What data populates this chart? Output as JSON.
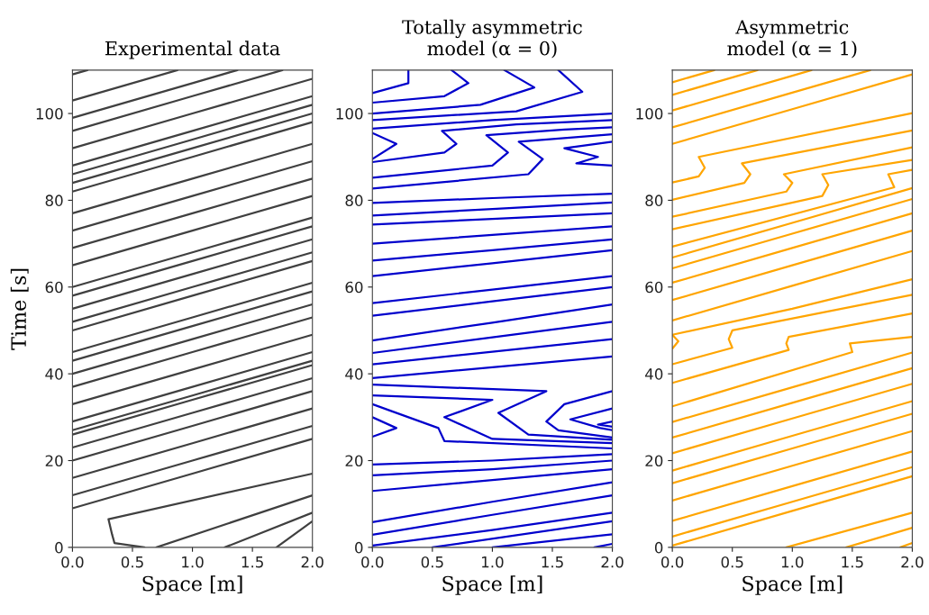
{
  "chart_data": [
    {
      "type": "line",
      "title": "Experimental data",
      "xlabel": "Space [m]",
      "ylabel": "Time [s]",
      "xlim": [
        0,
        2
      ],
      "ylim": [
        0,
        110
      ],
      "xticks": [
        {
          "value": 0,
          "label": "0.0"
        },
        {
          "value": 0.5,
          "label": "0.5"
        },
        {
          "value": 1,
          "label": "1.0"
        },
        {
          "value": 1.5,
          "label": "1.5"
        },
        {
          "value": 2,
          "label": "2.0"
        }
      ],
      "yticks": [
        0,
        20,
        40,
        60,
        80,
        100
      ],
      "grid": false,
      "series": [
        {
          "color": "#404040",
          "x": [
            0,
            0.125
          ],
          "values": [
            109,
            110
          ]
        },
        {
          "color": "#404040",
          "x": [
            0,
            0.875
          ],
          "values": [
            103,
            110
          ]
        },
        {
          "color": "#404040",
          "x": [
            0,
            1,
            1.375
          ],
          "values": [
            99,
            107,
            110
          ]
        },
        {
          "color": "#404040",
          "x": [
            0,
            1,
            1.75
          ],
          "values": [
            96,
            104,
            110
          ]
        },
        {
          "color": "#404040",
          "x": [
            0,
            1,
            2
          ],
          "values": [
            92,
            100,
            108
          ]
        },
        {
          "color": "#404040",
          "x": [
            0,
            1,
            2
          ],
          "values": [
            88,
            96,
            104
          ]
        },
        {
          "color": "#404040",
          "x": [
            0,
            1,
            2
          ],
          "values": [
            86,
            94,
            102
          ]
        },
        {
          "color": "#404040",
          "x": [
            0,
            1,
            2
          ],
          "values": [
            84,
            92,
            100
          ]
        },
        {
          "color": "#404040",
          "x": [
            0,
            1,
            2
          ],
          "values": [
            82,
            90,
            98
          ]
        },
        {
          "color": "#404040",
          "x": [
            0,
            1,
            2
          ],
          "values": [
            77,
            85,
            93
          ]
        },
        {
          "color": "#404040",
          "x": [
            0,
            1,
            2
          ],
          "values": [
            73,
            81,
            89
          ]
        },
        {
          "color": "#404040",
          "x": [
            0,
            1,
            2
          ],
          "values": [
            69,
            77,
            85
          ]
        },
        {
          "color": "#404040",
          "x": [
            0,
            1,
            2
          ],
          "values": [
            65,
            73,
            81
          ]
        },
        {
          "color": "#404040",
          "x": [
            0,
            1,
            2
          ],
          "values": [
            60,
            68,
            76
          ]
        },
        {
          "color": "#404040",
          "x": [
            0,
            1,
            2
          ],
          "values": [
            58,
            66,
            74
          ]
        },
        {
          "color": "#404040",
          "x": [
            0,
            1,
            2
          ],
          "values": [
            55,
            63,
            71
          ]
        },
        {
          "color": "#404040",
          "x": [
            0,
            1,
            2
          ],
          "values": [
            52,
            60,
            68
          ]
        },
        {
          "color": "#404040",
          "x": [
            0,
            1,
            2
          ],
          "values": [
            50,
            58,
            66
          ]
        },
        {
          "color": "#404040",
          "x": [
            0,
            1,
            2
          ],
          "values": [
            45,
            53,
            61
          ]
        },
        {
          "color": "#404040",
          "x": [
            0,
            1,
            2
          ],
          "values": [
            43,
            51,
            59
          ]
        },
        {
          "color": "#404040",
          "x": [
            0,
            1,
            2
          ],
          "values": [
            40,
            48,
            56
          ]
        },
        {
          "color": "#404040",
          "x": [
            0,
            1,
            2
          ],
          "values": [
            37,
            45,
            53
          ]
        },
        {
          "color": "#404040",
          "x": [
            0,
            1,
            2
          ],
          "values": [
            33,
            41,
            49
          ]
        },
        {
          "color": "#404040",
          "x": [
            0,
            1,
            2
          ],
          "values": [
            29,
            37,
            45
          ]
        },
        {
          "color": "#404040",
          "x": [
            0,
            1,
            2
          ],
          "values": [
            27,
            35,
            43
          ]
        },
        {
          "color": "#404040",
          "x": [
            0,
            1,
            2
          ],
          "values": [
            26,
            34,
            42
          ]
        },
        {
          "color": "#404040",
          "x": [
            0,
            1,
            2
          ],
          "values": [
            23,
            31,
            39
          ]
        },
        {
          "color": "#404040",
          "x": [
            0,
            1,
            2
          ],
          "values": [
            20,
            28,
            36
          ]
        },
        {
          "color": "#404040",
          "x": [
            0,
            1,
            2
          ],
          "values": [
            16,
            24,
            32
          ]
        },
        {
          "color": "#404040",
          "x": [
            0,
            1,
            2
          ],
          "values": [
            12,
            20,
            28
          ]
        },
        {
          "color": "#404040",
          "x": [
            0,
            1,
            2
          ],
          "values": [
            9,
            17,
            25
          ]
        },
        {
          "color": "#404040",
          "x": [
            0.6,
            0.35,
            0.33,
            0.3,
            2
          ],
          "values": [
            0,
            1,
            3,
            6.5,
            17
          ]
        },
        {
          "color": "#404040",
          "x": [
            0.7,
            2
          ],
          "values": [
            0,
            12
          ]
        },
        {
          "color": "#404040",
          "x": [
            1.27,
            2
          ],
          "values": [
            0,
            8
          ]
        },
        {
          "color": "#404040",
          "x": [
            1.7,
            2
          ],
          "values": [
            0,
            6
          ]
        }
      ]
    },
    {
      "type": "line",
      "title": "Totally asymmetric\nmodel (α = 0)",
      "xlabel": "Space [m]",
      "xlim": [
        0,
        2
      ],
      "ylim": [
        0,
        110
      ],
      "xticks": [
        {
          "value": 0,
          "label": "0.0"
        },
        {
          "value": 0.5,
          "label": "0.5"
        },
        {
          "value": 1,
          "label": "1.0"
        },
        {
          "value": 1.5,
          "label": "1.5"
        },
        {
          "value": 2,
          "label": "2.0"
        }
      ],
      "yticks": [
        0,
        20,
        40,
        60,
        80,
        100
      ],
      "grid": false,
      "tick_labels": "xy",
      "series": [
        {
          "color": "#0000cc",
          "x": [
            0,
            0.3,
            0.3
          ],
          "values": [
            104.7,
            107,
            110
          ]
        },
        {
          "color": "#0000cc",
          "x": [
            0,
            0.6,
            0.8,
            0.66
          ],
          "values": [
            102.5,
            104,
            107,
            110
          ]
        },
        {
          "color": "#0000cc",
          "x": [
            0,
            0.9,
            1.35,
            1.1
          ],
          "values": [
            100,
            102,
            106,
            110
          ]
        },
        {
          "color": "#0000cc",
          "x": [
            0,
            1.2,
            1.75,
            1.55
          ],
          "values": [
            98.5,
            100.5,
            105,
            110
          ]
        },
        {
          "color": "#0000cc",
          "x": [
            0,
            1,
            2
          ],
          "values": [
            96.5,
            98.5,
            100
          ]
        },
        {
          "color": "#0000cc",
          "x": [
            0,
            0.2,
            0
          ],
          "values": [
            95.5,
            93,
            89.5
          ]
        },
        {
          "color": "#0000cc",
          "x": [
            0,
            0.6,
            0.7,
            0.58,
            1.2,
            2
          ],
          "values": [
            88.8,
            91,
            93,
            96,
            97.5,
            98.5
          ]
        },
        {
          "color": "#0000cc",
          "x": [
            0,
            1,
            1.13,
            0.95,
            1.6,
            2
          ],
          "values": [
            85.2,
            88,
            91,
            95,
            96.3,
            96.8
          ]
        },
        {
          "color": "#0000cc",
          "x": [
            0,
            1.3,
            1.42,
            1.22,
            2
          ],
          "values": [
            82.7,
            86,
            89.5,
            93.5,
            95.2
          ]
        },
        {
          "color": "#0000cc",
          "x": [
            2,
            1.6,
            1.88,
            1.7,
            2
          ],
          "values": [
            93.5,
            92,
            90,
            88.5,
            88
          ]
        },
        {
          "color": "#0000cc",
          "x": [
            0,
            1,
            2
          ],
          "values": [
            79.4,
            80.5,
            81.5
          ]
        },
        {
          "color": "#0000cc",
          "x": [
            0,
            1,
            2
          ],
          "values": [
            76.5,
            78,
            79.5
          ]
        },
        {
          "color": "#0000cc",
          "x": [
            0,
            1,
            2
          ],
          "values": [
            74.4,
            75.7,
            77
          ]
        },
        {
          "color": "#0000cc",
          "x": [
            0,
            1,
            2
          ],
          "values": [
            70,
            72,
            74
          ]
        },
        {
          "color": "#0000cc",
          "x": [
            0,
            1,
            2
          ],
          "values": [
            66.1,
            68.5,
            71
          ]
        },
        {
          "color": "#0000cc",
          "x": [
            0,
            1,
            2
          ],
          "values": [
            62.5,
            65.5,
            68.5
          ]
        },
        {
          "color": "#0000cc",
          "x": [
            0,
            1,
            2
          ],
          "values": [
            56.3,
            59.4,
            62.5
          ]
        },
        {
          "color": "#0000cc",
          "x": [
            0,
            1,
            2
          ],
          "values": [
            53.4,
            56.7,
            60
          ]
        },
        {
          "color": "#0000cc",
          "x": [
            0,
            1,
            2
          ],
          "values": [
            47.7,
            51.8,
            56
          ]
        },
        {
          "color": "#0000cc",
          "x": [
            0,
            1,
            2
          ],
          "values": [
            44.8,
            48.4,
            52
          ]
        },
        {
          "color": "#0000cc",
          "x": [
            0,
            1,
            2
          ],
          "values": [
            42.2,
            45.1,
            48
          ]
        },
        {
          "color": "#0000cc",
          "x": [
            0,
            1,
            2
          ],
          "values": [
            39,
            41.5,
            44
          ]
        },
        {
          "color": "#0000cc",
          "x": [
            0,
            0.2,
            0
          ],
          "values": [
            30,
            27.5,
            25.5
          ]
        },
        {
          "color": "#0000cc",
          "x": [
            0,
            0.15,
            0.55,
            0.6,
            2
          ],
          "values": [
            33,
            31.5,
            27.5,
            24.5,
            22.8
          ]
        },
        {
          "color": "#0000cc",
          "x": [
            0,
            1,
            0.6,
            1,
            2
          ],
          "values": [
            35,
            34,
            30,
            25,
            24
          ]
        },
        {
          "color": "#0000cc",
          "x": [
            0,
            1.45,
            1.05,
            1.3,
            2
          ],
          "values": [
            37.5,
            36,
            31,
            26,
            24.8
          ]
        },
        {
          "color": "#0000cc",
          "x": [
            2,
            1.6,
            1.45,
            1.55,
            2
          ],
          "values": [
            36,
            33,
            29,
            27,
            25.3
          ]
        },
        {
          "color": "#0000cc",
          "x": [
            2,
            1.65,
            1.9,
            2
          ],
          "values": [
            32,
            29.5,
            27.5,
            27
          ]
        },
        {
          "color": "#0000cc",
          "x": [
            2,
            1.88,
            2
          ],
          "values": [
            29,
            28.3,
            27.8
          ]
        },
        {
          "color": "#0000cc",
          "x": [
            0,
            1,
            2
          ],
          "values": [
            19.1,
            20,
            21.5
          ]
        },
        {
          "color": "#0000cc",
          "x": [
            0,
            1,
            2
          ],
          "values": [
            16.6,
            18,
            20
          ]
        },
        {
          "color": "#0000cc",
          "x": [
            0,
            1,
            2
          ],
          "values": [
            13,
            15.5,
            18
          ]
        },
        {
          "color": "#0000cc",
          "x": [
            0,
            1,
            2
          ],
          "values": [
            5.8,
            10.5,
            15
          ]
        },
        {
          "color": "#0000cc",
          "x": [
            0,
            1,
            2
          ],
          "values": [
            2.9,
            7.5,
            12
          ]
        },
        {
          "color": "#0000cc",
          "x": [
            0,
            1,
            2
          ],
          "values": [
            0.4,
            4,
            8
          ]
        },
        {
          "color": "#0000cc",
          "x": [
            0.5,
            2
          ],
          "values": [
            0,
            6
          ]
        },
        {
          "color": "#0000cc",
          "x": [
            1,
            2
          ],
          "values": [
            0,
            3
          ]
        },
        {
          "color": "#0000cc",
          "x": [
            1.85,
            2
          ],
          "values": [
            0,
            0.8
          ]
        }
      ]
    },
    {
      "type": "line",
      "title": "Asymmetric\nmodel (α = 1)",
      "xlabel": "Space [m]",
      "xlim": [
        0,
        2
      ],
      "ylim": [
        0,
        110
      ],
      "xticks": [
        {
          "value": 0,
          "label": "0.0"
        },
        {
          "value": 0.5,
          "label": "0.5"
        },
        {
          "value": 1,
          "label": "1.0"
        },
        {
          "value": 1.5,
          "label": "1.5"
        },
        {
          "value": 2,
          "label": "2.0"
        }
      ],
      "yticks": [
        0,
        20,
        40,
        60,
        80,
        100
      ],
      "grid": false,
      "series": [
        {
          "color": "#ffa500",
          "x": [
            0,
            0.35
          ],
          "values": [
            107.2,
            110
          ]
        },
        {
          "color": "#ffa500",
          "x": [
            0,
            0.71
          ],
          "values": [
            104.3,
            110
          ]
        },
        {
          "color": "#ffa500",
          "x": [
            0,
            1,
            1.16
          ],
          "values": [
            100.7,
            108.7,
            110
          ]
        },
        {
          "color": "#ffa500",
          "x": [
            0,
            1,
            1.65
          ],
          "values": [
            96.8,
            104.8,
            110
          ]
        },
        {
          "color": "#ffa500",
          "x": [
            0,
            1,
            2
          ],
          "values": [
            93,
            101,
            109
          ]
        },
        {
          "color": "#ffa500",
          "x": [
            0,
            0.22,
            0.27,
            0.22,
            2
          ],
          "values": [
            84.1,
            85.5,
            87.5,
            90,
            100.1
          ]
        },
        {
          "color": "#ffa500",
          "x": [
            0,
            0.6,
            0.65,
            0.58,
            2
          ],
          "values": [
            80.1,
            84,
            86,
            88.5,
            96.1
          ]
        },
        {
          "color": "#ffa500",
          "x": [
            0,
            0.95,
            1,
            0.93,
            2
          ],
          "values": [
            76.2,
            82,
            84,
            86,
            92.2
          ]
        },
        {
          "color": "#ffa500",
          "x": [
            0,
            1.25,
            1.3,
            1.25,
            2
          ],
          "values": [
            73.3,
            81,
            83.5,
            86,
            89.3
          ]
        },
        {
          "color": "#ffa500",
          "x": [
            0,
            1.85,
            1.8,
            2
          ],
          "values": [
            69.3,
            83,
            86,
            87
          ]
        },
        {
          "color": "#ffa500",
          "x": [
            0,
            1,
            2
          ],
          "values": [
            66.8,
            74.8,
            82.8
          ]
        },
        {
          "color": "#ffa500",
          "x": [
            0,
            1,
            2
          ],
          "values": [
            64.3,
            72.3,
            80.3
          ]
        },
        {
          "color": "#ffa500",
          "x": [
            0,
            1,
            2
          ],
          "values": [
            61,
            69,
            77
          ]
        },
        {
          "color": "#ffa500",
          "x": [
            0,
            1,
            2
          ],
          "values": [
            57,
            65,
            73
          ]
        },
        {
          "color": "#ffa500",
          "x": [
            0,
            1,
            2
          ],
          "values": [
            52.3,
            60.3,
            68.3
          ]
        },
        {
          "color": "#ffa500",
          "x": [
            0,
            0.05,
            0,
            1,
            2
          ],
          "values": [
            45.8,
            47.5,
            49,
            55,
            61.8
          ]
        },
        {
          "color": "#ffa500",
          "x": [
            0,
            0.5,
            0.47,
            0.5,
            2
          ],
          "values": [
            42.2,
            46,
            48,
            50,
            58.2
          ]
        },
        {
          "color": "#ffa500",
          "x": [
            0,
            0.97,
            0.95,
            0.97,
            2
          ],
          "values": [
            37.9,
            45.5,
            47,
            48.5,
            53.9
          ]
        },
        {
          "color": "#ffa500",
          "x": [
            0,
            1.5,
            1.48,
            2
          ],
          "values": [
            32.5,
            45,
            47,
            48.5
          ]
        },
        {
          "color": "#ffa500",
          "x": [
            0,
            1,
            2
          ],
          "values": [
            28.9,
            36.9,
            44.9
          ]
        },
        {
          "color": "#ffa500",
          "x": [
            0,
            1,
            2
          ],
          "values": [
            25.3,
            33.3,
            41.3
          ]
        },
        {
          "color": "#ffa500",
          "x": [
            0,
            1,
            2
          ],
          "values": [
            21.7,
            29.7,
            37.7
          ]
        },
        {
          "color": "#ffa500",
          "x": [
            0,
            1,
            2
          ],
          "values": [
            17.7,
            25.7,
            33.7
          ]
        },
        {
          "color": "#ffa500",
          "x": [
            0,
            1,
            2
          ],
          "values": [
            14.8,
            22.8,
            30.8
          ]
        },
        {
          "color": "#ffa500",
          "x": [
            0,
            1,
            2
          ],
          "values": [
            10.8,
            18.8,
            26.8
          ]
        },
        {
          "color": "#ffa500",
          "x": [
            0,
            1,
            2
          ],
          "values": [
            6.1,
            14.1,
            22.1
          ]
        },
        {
          "color": "#ffa500",
          "x": [
            0,
            1,
            2
          ],
          "values": [
            2.5,
            10.5,
            18.5
          ]
        },
        {
          "color": "#ffa500",
          "x": [
            0,
            1,
            2
          ],
          "values": [
            0.4,
            8.4,
            16.4
          ]
        },
        {
          "color": "#ffa500",
          "x": [
            0.95,
            2
          ],
          "values": [
            0,
            8
          ]
        },
        {
          "color": "#ffa500",
          "x": [
            1.45,
            2
          ],
          "values": [
            0,
            4.5
          ]
        },
        {
          "color": "#ffa500",
          "x": [
            1.9,
            2
          ],
          "values": [
            0,
            1
          ]
        }
      ]
    }
  ]
}
